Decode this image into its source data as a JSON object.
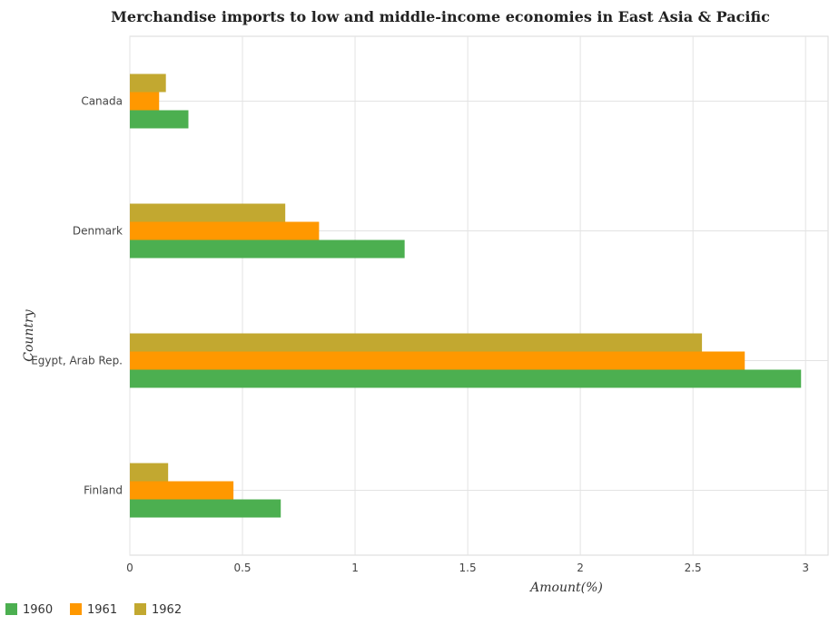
{
  "chart_data": {
    "type": "bar",
    "orientation": "horizontal",
    "title": "Merchandise imports to low and middle-income economies in East Asia & Pacific",
    "xlabel": "Amount(%)",
    "ylabel": "Country",
    "categories": [
      "Canada",
      "Denmark",
      "Egypt, Arab Rep.",
      "Finland"
    ],
    "series": [
      {
        "name": "1960",
        "color": "#4caf50",
        "values": [
          0.26,
          1.22,
          2.98,
          0.67
        ]
      },
      {
        "name": "1961",
        "color": "#ff9800",
        "values": [
          0.13,
          0.84,
          2.73,
          0.46
        ]
      },
      {
        "name": "1962",
        "color": "#c2a830",
        "values": [
          0.16,
          0.69,
          2.54,
          0.17
        ]
      }
    ],
    "xlim": [
      0,
      3.1
    ],
    "xticks": [
      "0",
      "0.5",
      "1",
      "1.5",
      "2",
      "2.5",
      "3"
    ],
    "grid": true,
    "legend": "bottom-left"
  }
}
